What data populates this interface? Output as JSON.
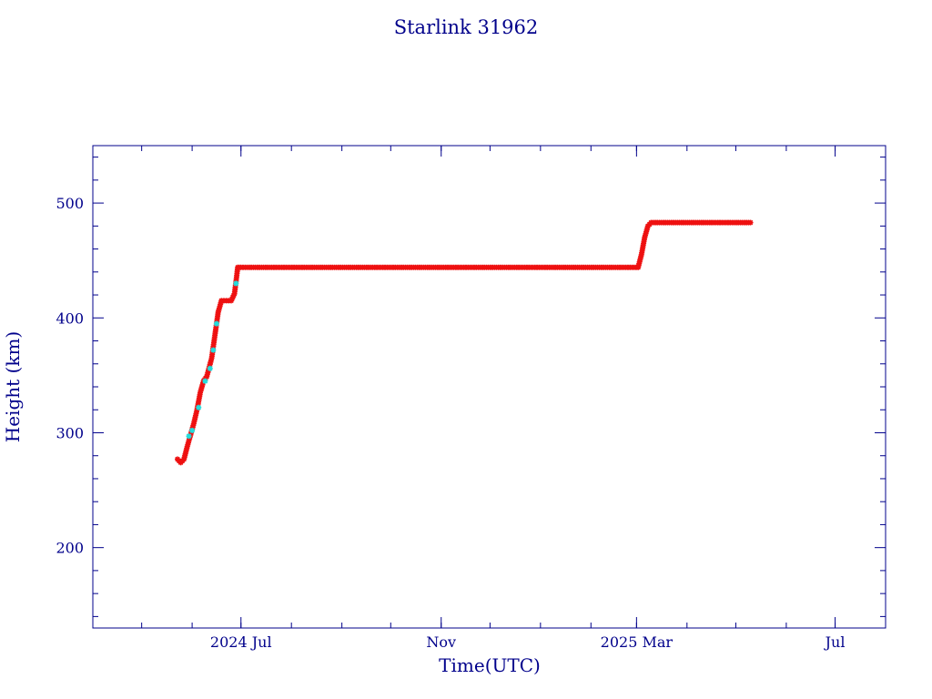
{
  "chart_data": {
    "type": "scatter",
    "title": "Starlink 31962",
    "xlabel": "Time(UTC)",
    "ylabel": "Height (km)",
    "xlim": [
      "2024-04-01",
      "2025-08-01"
    ],
    "ylim": [
      130,
      550
    ],
    "x_ticks": [
      {
        "date": "2024-07-01",
        "label": "2024 Jul"
      },
      {
        "date": "2024-11-01",
        "label": "Nov"
      },
      {
        "date": "2025-03-01",
        "label": "2025 Mar"
      },
      {
        "date": "2025-07-01",
        "label": "Jul"
      }
    ],
    "y_ticks": [
      {
        "value": 200,
        "label": "200"
      },
      {
        "value": 300,
        "label": "300"
      },
      {
        "value": 400,
        "label": "400"
      },
      {
        "value": 500,
        "label": "500"
      }
    ],
    "grid": false,
    "colors": {
      "axis": "#00008b",
      "primary": "#ee1111",
      "secondary": "#22dddd",
      "line": "#000000"
    },
    "series": [
      {
        "color": "#ee1111",
        "points": [
          [
            "2024-05-23",
            277
          ],
          [
            "2024-05-25",
            274
          ],
          [
            "2024-05-27",
            277
          ],
          [
            "2024-05-29",
            288
          ],
          [
            "2024-05-31",
            298
          ],
          [
            "2024-06-02",
            308
          ],
          [
            "2024-06-04",
            320
          ],
          [
            "2024-06-06",
            335
          ],
          [
            "2024-06-08",
            345
          ],
          [
            "2024-06-10",
            349
          ],
          [
            "2024-06-13",
            365
          ],
          [
            "2024-06-15",
            385
          ],
          [
            "2024-06-17",
            405
          ],
          [
            "2024-06-19",
            415
          ],
          [
            "2024-06-22",
            415
          ],
          [
            "2024-06-25",
            415
          ],
          [
            "2024-06-27",
            421
          ],
          [
            "2024-06-28",
            432
          ],
          [
            "2024-06-29",
            444
          ],
          [
            "2024-07-01",
            444
          ],
          [
            "2024-07-20",
            444
          ],
          [
            "2024-08-15",
            444
          ],
          [
            "2024-09-15",
            444
          ],
          [
            "2024-10-15",
            444
          ],
          [
            "2024-11-15",
            444
          ],
          [
            "2024-12-15",
            444
          ],
          [
            "2025-01-15",
            444
          ],
          [
            "2025-02-10",
            444
          ],
          [
            "2025-02-25",
            444
          ],
          [
            "2025-03-02",
            444
          ],
          [
            "2025-03-04",
            455
          ],
          [
            "2025-03-06",
            470
          ],
          [
            "2025-03-08",
            480
          ],
          [
            "2025-03-10",
            483
          ],
          [
            "2025-03-25",
            483
          ],
          [
            "2025-04-10",
            483
          ],
          [
            "2025-04-25",
            483
          ],
          [
            "2025-05-05",
            483
          ],
          [
            "2025-05-10",
            483
          ]
        ]
      },
      {
        "color": "#22dddd",
        "points": [
          [
            "2024-05-30",
            297
          ],
          [
            "2024-06-01",
            302
          ],
          [
            "2024-06-05",
            322
          ],
          [
            "2024-06-09",
            345
          ],
          [
            "2024-06-12",
            356
          ],
          [
            "2024-06-14",
            372
          ],
          [
            "2024-06-16",
            395
          ],
          [
            "2024-06-28",
            430
          ]
        ]
      }
    ]
  }
}
